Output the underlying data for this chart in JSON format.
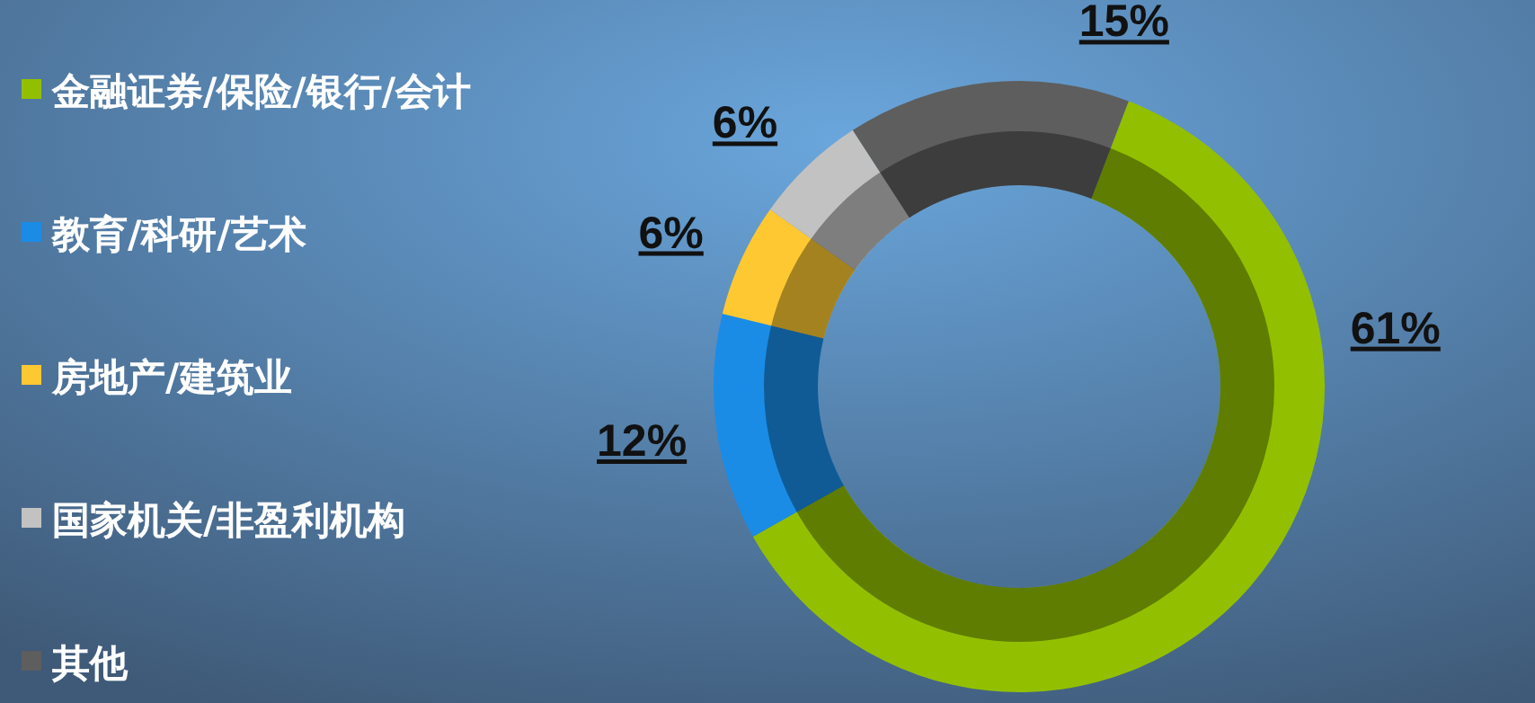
{
  "chart_data": {
    "type": "donut",
    "categories": [
      "金融证券/保险/银行/会计",
      "教育/科研/艺术",
      "房地产/建筑业",
      "国家机关/非盈利机构",
      "其他"
    ],
    "values": [
      61,
      12,
      6,
      6,
      15
    ],
    "colors": [
      "#92c000",
      "#1a8ce6",
      "#fec832",
      "#c2c2c2",
      "#5e5e5e"
    ],
    "value_labels": [
      "61%",
      "12%",
      "6%",
      "6%",
      "15%"
    ],
    "legend": "left"
  }
}
